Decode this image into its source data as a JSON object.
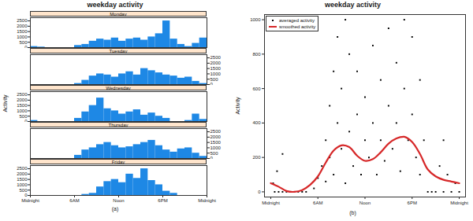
{
  "chart_data": [
    {
      "type": "bar",
      "title": "weekday activity",
      "ylabel": "Activity",
      "caption": "(a)",
      "x": [
        0,
        1,
        2,
        3,
        4,
        5,
        6,
        7,
        8,
        9,
        10,
        11,
        12,
        13,
        14,
        15,
        16,
        17,
        18,
        19,
        20,
        21,
        22,
        23
      ],
      "xlim": [
        0,
        24
      ],
      "xticks": [
        {
          "value": 0,
          "label": "Midnight"
        },
        {
          "value": 6,
          "label": "6AM"
        },
        {
          "value": 12,
          "label": "Noon"
        },
        {
          "value": 18,
          "label": "6PM"
        },
        {
          "value": 24,
          "label": "Midnight"
        }
      ],
      "ylim": [
        0,
        2800
      ],
      "yticks": [
        0,
        500,
        1000,
        1500,
        2000,
        2500
      ],
      "series": [
        {
          "name": "Monday",
          "color": "#1e88e5",
          "values": [
            100,
            50,
            0,
            0,
            0,
            0,
            200,
            300,
            600,
            800,
            700,
            900,
            600,
            800,
            900,
            700,
            1000,
            1300,
            2500,
            800,
            300,
            100,
            400,
            900
          ]
        },
        {
          "name": "Tuesday",
          "color": "#1e88e5",
          "values": [
            0,
            0,
            0,
            0,
            0,
            0,
            100,
            400,
            800,
            1000,
            900,
            700,
            1000,
            1200,
            900,
            1500,
            1300,
            1100,
            900,
            800,
            600,
            700,
            300,
            100
          ]
        },
        {
          "name": "Wednesday",
          "color": "#1e88e5",
          "values": [
            100,
            0,
            0,
            0,
            0,
            0,
            300,
            900,
            1500,
            2200,
            1200,
            1000,
            700,
            900,
            1100,
            600,
            800,
            500,
            300,
            0,
            0,
            100,
            700,
            200
          ]
        },
        {
          "name": "Thursday",
          "color": "#1e88e5",
          "values": [
            0,
            0,
            0,
            0,
            0,
            0,
            300,
            800,
            1000,
            1300,
            1500,
            1200,
            1000,
            1100,
            1300,
            1500,
            1700,
            1200,
            800,
            600,
            900,
            1000,
            500,
            200
          ]
        },
        {
          "name": "Friday",
          "color": "#1e88e5",
          "values": [
            0,
            0,
            0,
            0,
            0,
            0,
            0,
            100,
            200,
            800,
            1300,
            1500,
            1200,
            2000,
            1600,
            2500,
            1400,
            1000,
            400,
            200,
            0,
            0,
            0,
            0
          ]
        }
      ]
    },
    {
      "type": "scatter",
      "title": "weekday activity",
      "ylabel": "Activity",
      "caption": "(b)",
      "legend": "top-left",
      "xlim": [
        -0.8,
        24.8
      ],
      "xticks": [
        {
          "value": 0,
          "label": "Midnight"
        },
        {
          "value": 6,
          "label": "6AM"
        },
        {
          "value": 12,
          "label": "Noon"
        },
        {
          "value": 18,
          "label": "6PM"
        },
        {
          "value": 24,
          "label": "Midnight"
        }
      ],
      "ylim": [
        -30,
        1030
      ],
      "yticks": [
        0,
        200,
        400,
        600,
        800,
        1000
      ],
      "series": [
        {
          "name": "averaged activity",
          "type": "scatter",
          "color": "#000000",
          "marker": "square",
          "x": [
            0.3,
            0.5,
            0.8,
            1,
            1.5,
            1.5,
            2,
            2.5,
            3,
            3.5,
            4,
            4.5,
            5.5,
            6,
            6.5,
            7,
            7,
            7.5,
            7.5,
            8,
            8,
            8.5,
            8.5,
            9,
            9,
            9.5,
            9.5,
            10,
            10,
            10.5,
            11,
            11,
            11.5,
            12,
            12,
            12.5,
            13,
            13,
            13.5,
            14,
            14,
            14.5,
            15,
            15,
            15.5,
            16,
            16,
            16.5,
            17,
            17,
            17.5,
            18,
            18,
            18.5,
            19,
            19,
            19.5,
            20,
            20.5,
            21,
            21.5,
            22,
            22,
            22.5,
            23,
            23.5,
            24
          ],
          "values": [
            50,
            0,
            120,
            0,
            0,
            220,
            0,
            0,
            0,
            0,
            0,
            0,
            20,
            80,
            150,
            300,
            60,
            500,
            200,
            700,
            100,
            400,
            900,
            250,
            600,
            1000,
            50,
            350,
            800,
            150,
            450,
            700,
            100,
            300,
            550,
            200,
            400,
            850,
            100,
            300,
            650,
            180,
            500,
            950,
            250,
            400,
            750,
            120,
            600,
            1000,
            300,
            450,
            900,
            200,
            650,
            100,
            300,
            0,
            0,
            0,
            150,
            300,
            0,
            100,
            0,
            50,
            0
          ]
        },
        {
          "name": "smoothed activity",
          "type": "line",
          "color": "#d62728",
          "x": [
            0,
            1,
            2,
            3,
            4,
            5,
            6,
            7,
            8,
            9,
            10,
            11,
            12,
            13,
            14,
            15,
            16,
            17,
            18,
            19,
            20,
            21,
            22,
            23,
            24
          ],
          "values": [
            50,
            30,
            5,
            0,
            10,
            40,
            90,
            170,
            240,
            270,
            260,
            210,
            180,
            190,
            230,
            280,
            310,
            320,
            290,
            220,
            130,
            90,
            70,
            60,
            50
          ]
        }
      ]
    }
  ]
}
